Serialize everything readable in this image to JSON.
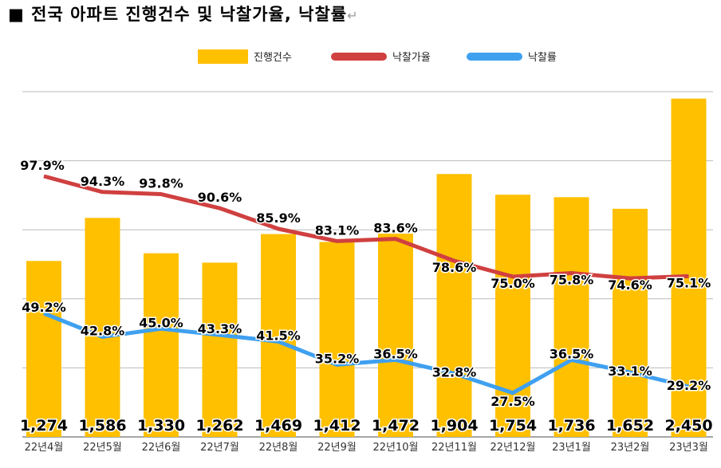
{
  "title": "■ 전국 아파트 진행건수 및 낙찰가율, 낙찰률",
  "return_mark": "↵",
  "chart_data": {
    "type": "bar+line",
    "categories": [
      "22년4월",
      "22년5월",
      "22년6월",
      "22년7월",
      "22년8월",
      "22년9월",
      "22년10월",
      "22년11월",
      "22년12월",
      "23년1월",
      "23년2월",
      "23년3월"
    ],
    "series": [
      {
        "name": "진행건수",
        "type": "bar",
        "color": "#FFC000",
        "values": [
          1274,
          1586,
          1330,
          1262,
          1469,
          1412,
          1472,
          1904,
          1754,
          1736,
          1652,
          2450
        ],
        "labels": [
          "1,274",
          "1,586",
          "1,330",
          "1,262",
          "1,469",
          "1,412",
          "1,472",
          "1,904",
          "1,754",
          "1,736",
          "1,652",
          "2,450"
        ]
      },
      {
        "name": "낙찰가율",
        "type": "line",
        "color": "#D04040",
        "values": [
          97.9,
          94.3,
          93.8,
          90.6,
          85.9,
          83.1,
          83.6,
          78.6,
          75.0,
          75.8,
          74.6,
          75.1
        ],
        "unit": "%"
      },
      {
        "name": "낙찰률",
        "type": "line",
        "color": "#3FA0F0",
        "values": [
          49.2,
          42.8,
          45.0,
          43.3,
          41.5,
          35.2,
          36.5,
          32.8,
          27.5,
          36.5,
          33.1,
          29.2
        ],
        "unit": "%"
      }
    ],
    "ylim": [
      0,
      2500
    ],
    "grid": true,
    "legend": "top-center"
  }
}
